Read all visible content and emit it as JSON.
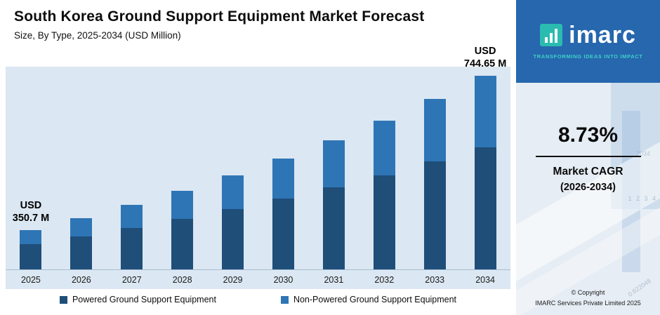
{
  "header": {
    "title": "South Korea Ground Support Equipment Market Forecast",
    "subtitle": "Size, By Type, 2025-2034 (USD Million)"
  },
  "chart_data": {
    "type": "bar",
    "stacked": true,
    "title": "South Korea Ground Support Equipment Market Forecast",
    "xlabel": "",
    "ylabel": "Size (USD Million)",
    "grid": false,
    "legend_position": "bottom",
    "categories": [
      "2025",
      "2026",
      "2027",
      "2028",
      "2029",
      "2030",
      "2031",
      "2032",
      "2033",
      "2034"
    ],
    "series": [
      {
        "name": "Powered Ground Support Equipment",
        "color": "#1f4e79",
        "values": [
          228.0,
          247.0,
          267.7,
          290.0,
          314.3,
          340.5,
          369.0,
          399.7,
          433.1,
          469.1
        ]
      },
      {
        "name": "Non-Powered Ground Support Equipment",
        "color": "#2e75b6",
        "values": [
          122.7,
          134.3,
          146.9,
          160.8,
          175.9,
          192.5,
          210.5,
          230.4,
          252.0,
          275.55
        ]
      }
    ],
    "totals": [
      350.7,
      381.3,
      414.6,
      450.8,
      490.2,
      533.0,
      579.5,
      630.1,
      685.1,
      744.65
    ],
    "annotations": [
      {
        "index": 0,
        "line1": "USD",
        "line2": "350.7 M"
      },
      {
        "index": 9,
        "line1": "USD",
        "line2": "744.65 M"
      }
    ]
  },
  "sidebar": {
    "logo_text": "imarc",
    "tagline": "TRANSFORMING IDEAS INTO IMPACT",
    "cagr_value": "8.73%",
    "cagr_label_line1": "Market CAGR",
    "cagr_label_line2": "(2026-2034)",
    "copyright_line1": "© Copyright",
    "copyright_line2": "IMARC Services Private Limited 2025",
    "brand_blue": "#2667ae",
    "accent_teal": "#2bbbb0",
    "decor": {
      "n1": "0.622048",
      "n2": "2034",
      "n3": "1 2 3 4"
    }
  }
}
